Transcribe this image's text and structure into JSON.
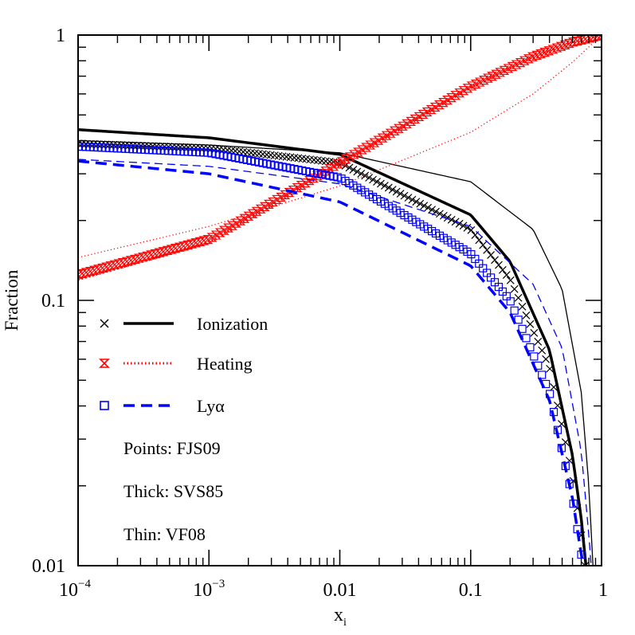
{
  "chart_data": {
    "type": "line",
    "xlabel": "x",
    "xlabel_sub": "i",
    "ylabel": "Fraction",
    "xscale": "log",
    "yscale": "log",
    "xlim": [
      0.0001,
      1
    ],
    "ylim": [
      0.01,
      1
    ],
    "x_ticks": [
      {
        "value": 0.0001,
        "base": "10",
        "exp": "−4"
      },
      {
        "value": 0.001,
        "base": "10",
        "exp": "−3"
      },
      {
        "value": 0.01,
        "label": "0.01"
      },
      {
        "value": 0.1,
        "label": "0.1"
      },
      {
        "value": 1,
        "label": "1"
      }
    ],
    "y_ticks": [
      {
        "value": 0.01,
        "label": "0.01"
      },
      {
        "value": 0.1,
        "label": "0.1"
      },
      {
        "value": 1,
        "label": "1"
      }
    ],
    "legend": {
      "placement": "lower-left",
      "entries": [
        {
          "label": "Ionization",
          "color": "#000000",
          "marker": "x",
          "line": "solid"
        },
        {
          "label": "Heating",
          "color": "#ff0000",
          "marker": "star",
          "line": "dotted"
        },
        {
          "label": "Lyα",
          "color": "#0000ff",
          "marker": "square",
          "line": "dashed"
        }
      ],
      "notes": [
        "Points: FJS09",
        "Thick: SVS85",
        "Thin: VF08"
      ]
    },
    "series": [
      {
        "name": "Ionization",
        "source": "FJS09",
        "style": "points",
        "marker": "x",
        "color": "#000000",
        "x": [
          0.0001,
          0.001,
          0.01,
          0.1,
          0.2,
          0.4,
          0.6,
          0.7,
          0.75
        ],
        "y": [
          0.39,
          0.375,
          0.33,
          0.185,
          0.12,
          0.056,
          0.022,
          0.013,
          0.01
        ]
      },
      {
        "name": "Ionization",
        "source": "SVS85",
        "style": "thick",
        "line": "solid",
        "color": "#000000",
        "x": [
          0.0001,
          0.001,
          0.01,
          0.1,
          0.2,
          0.4,
          0.6,
          0.7,
          0.76
        ],
        "y": [
          0.44,
          0.41,
          0.355,
          0.21,
          0.14,
          0.065,
          0.026,
          0.015,
          0.01
        ]
      },
      {
        "name": "Ionization",
        "source": "VF08",
        "style": "thin",
        "line": "solid",
        "color": "#000000",
        "x": [
          0.0001,
          0.001,
          0.01,
          0.1,
          0.3,
          0.5,
          0.7,
          0.8,
          0.86
        ],
        "y": [
          0.4,
          0.385,
          0.36,
          0.28,
          0.185,
          0.11,
          0.045,
          0.02,
          0.01
        ]
      },
      {
        "name": "Heating",
        "source": "FJS09",
        "style": "points",
        "marker": "star",
        "color": "#ff0000",
        "x": [
          0.0001,
          0.001,
          0.01,
          0.1,
          0.3,
          0.6,
          1
        ],
        "y": [
          0.125,
          0.17,
          0.33,
          0.64,
          0.83,
          0.94,
          1.0
        ]
      },
      {
        "name": "Heating",
        "source": "SVS85",
        "style": "thick",
        "line": "dotted",
        "color": "#ff0000",
        "x": [
          0.0001,
          0.001,
          0.01,
          0.1,
          0.3,
          0.6,
          1
        ],
        "y": [
          0.12,
          0.165,
          0.325,
          0.635,
          0.83,
          0.94,
          1.0
        ]
      },
      {
        "name": "Heating",
        "source": "VF08",
        "style": "thin",
        "line": "dotted",
        "color": "#ff0000",
        "x": [
          0.0001,
          0.001,
          0.01,
          0.1,
          0.3,
          0.6,
          1
        ],
        "y": [
          0.145,
          0.19,
          0.27,
          0.43,
          0.6,
          0.79,
          1.0
        ]
      },
      {
        "name": "Lyα",
        "source": "FJS09",
        "style": "points",
        "marker": "square",
        "color": "#0000ff",
        "x": [
          0.0001,
          0.001,
          0.01,
          0.1,
          0.2,
          0.4,
          0.6,
          0.7,
          0.75
        ],
        "y": [
          0.38,
          0.36,
          0.29,
          0.15,
          0.1,
          0.045,
          0.018,
          0.011,
          0.0095
        ]
      },
      {
        "name": "Lyα",
        "source": "SVS85",
        "style": "thick",
        "line": "dashed",
        "color": "#0000ff",
        "x": [
          0.0001,
          0.001,
          0.01,
          0.1,
          0.2,
          0.4,
          0.6,
          0.7,
          0.74
        ],
        "y": [
          0.335,
          0.3,
          0.235,
          0.135,
          0.09,
          0.042,
          0.018,
          0.011,
          0.0095
        ]
      },
      {
        "name": "Lyα",
        "source": "VF08",
        "style": "thin",
        "line": "dashed",
        "color": "#0000ff",
        "x": [
          0.0001,
          0.001,
          0.01,
          0.1,
          0.3,
          0.5,
          0.7,
          0.8,
          0.84
        ],
        "y": [
          0.34,
          0.32,
          0.275,
          0.19,
          0.115,
          0.066,
          0.027,
          0.013,
          0.0095
        ]
      }
    ]
  }
}
